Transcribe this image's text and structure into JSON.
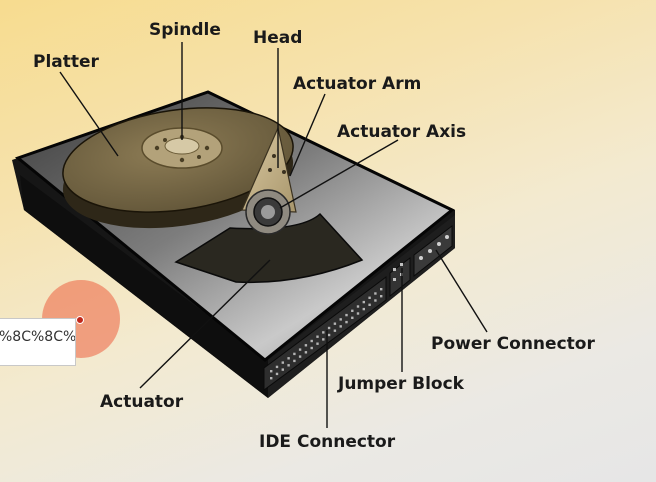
{
  "labels": {
    "spindle": "Spindle",
    "head": "Head",
    "platter": "Platter",
    "actuator_arm": "Actuator Arm",
    "actuator_axis": "Actuator Axis",
    "power_connector": "Power Connector",
    "jumper_block": "Jumper Block",
    "actuator": "Actuator",
    "ide_connector": "IDE Connector"
  },
  "tooltip": {
    "text": "%8C%8C%"
  },
  "colors": {
    "drive_case": "#2a2a2a",
    "drive_surface": "#9a9a9a",
    "platter": "#7a6a45",
    "hub": "#b3a27a",
    "cursor_halo": "#ec6040"
  }
}
